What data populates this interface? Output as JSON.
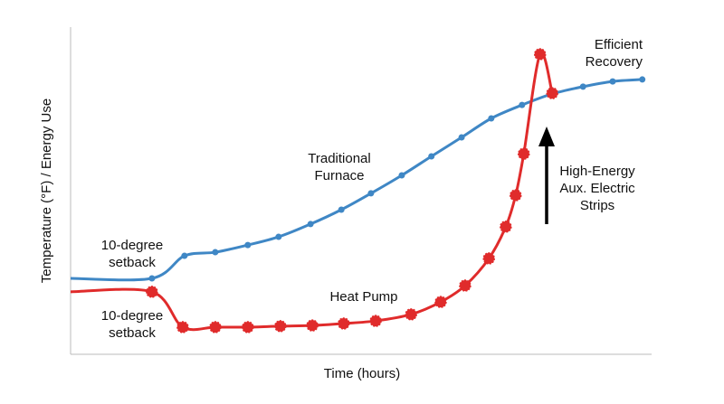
{
  "chart_data": {
    "type": "line",
    "xlabel": "Time (hours)",
    "ylabel": "Temperature (°F) / Energy Use",
    "xlim": [
      0,
      100
    ],
    "ylim": [
      0,
      100
    ],
    "series": [
      {
        "name": "Traditional Furnace",
        "color": "#3f87c5",
        "x": [
          0,
          14.0,
          19.6,
          24.9,
          30.5,
          35.8,
          41.3,
          46.6,
          51.7,
          57.0,
          62.1,
          67.3,
          72.4,
          77.7,
          82.9,
          88.2,
          93.3,
          98.4
        ],
        "values": [
          23.2,
          23.2,
          30.1,
          31.2,
          33.4,
          35.9,
          39.8,
          44.2,
          49.2,
          54.7,
          60.5,
          66.3,
          72.1,
          76.2,
          79.6,
          81.8,
          83.4,
          84.0
        ]
      },
      {
        "name": "Heat Pump",
        "color": "#e02b2b",
        "x": [
          0,
          14.0,
          19.3,
          24.9,
          30.5,
          36.1,
          41.6,
          47.0,
          52.5,
          58.6,
          63.7,
          67.9,
          72.0,
          74.9,
          76.6,
          78.0,
          80.8,
          82.9
        ],
        "values": [
          19.1,
          19.1,
          8.3,
          8.3,
          8.3,
          8.6,
          8.8,
          9.4,
          10.2,
          12.2,
          16.0,
          21.0,
          29.3,
          39.0,
          48.6,
          61.3,
          91.7,
          79.8
        ]
      }
    ],
    "annotations": [
      [
        "10-degree",
        "setback"
      ],
      [
        "10-degree",
        "setback"
      ],
      [
        "Efficient",
        "Recovery"
      ],
      [
        "High-Energy",
        "Aux. Electric",
        "Strips"
      ]
    ]
  }
}
